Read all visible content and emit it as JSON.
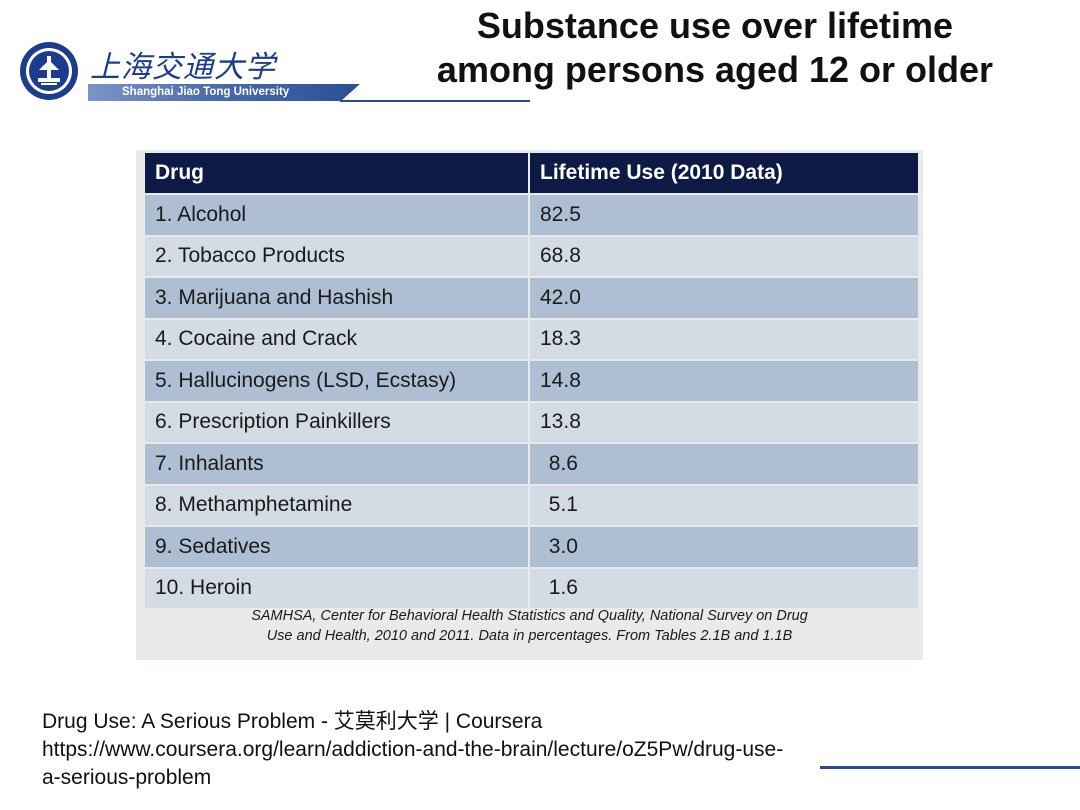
{
  "header": {
    "logo_cn": "上海交通大学",
    "logo_en": "Shanghai Jiao Tong University",
    "title_line1": "Substance use over lifetime",
    "title_line2": "among persons aged 12 or  older"
  },
  "table": {
    "headers": [
      "Drug",
      "Lifetime Use (2010 Data)"
    ],
    "rows": [
      {
        "drug": "1. Alcohol",
        "value": "82.5"
      },
      {
        "drug": "2. Tobacco Products",
        "value": "68.8"
      },
      {
        "drug": "3. Marijuana and Hashish",
        "value": "42.0"
      },
      {
        "drug": "4. Cocaine and Crack",
        "value": "18.3"
      },
      {
        "drug": "5. Hallucinogens (LSD, Ecstasy)",
        "value": "14.8"
      },
      {
        "drug": "6. Prescription Painkillers",
        "value": "13.8"
      },
      {
        "drug": "7. Inhalants",
        "value": "8.6"
      },
      {
        "drug": "8. Methamphetamine",
        "value": "5.1"
      },
      {
        "drug": "9. Sedatives",
        "value": "3.0"
      },
      {
        "drug": "10. Heroin",
        "value": "1.6"
      }
    ],
    "source_line1": "SAMHSA, Center for Behavioral Health Statistics and Quality, National Survey on Drug",
    "source_line2": "Use and Health, 2010 and 2011.  Data in percentages.  From Tables 2.1B and 1.1B"
  },
  "footer": {
    "line1": "Drug Use: A Serious Problem - 艾莫利大学 | Coursera",
    "line2": "https://www.coursera.org/learn/addiction-and-the-brain/lecture/oZ5Pw/drug-use-",
    "line3": "a-serious-problem"
  },
  "colors": {
    "header_bg": "#0d1a45",
    "row_dark": "#afbfd3",
    "row_light": "#d3dbe4",
    "logo_blue": "#1e3c8c"
  }
}
